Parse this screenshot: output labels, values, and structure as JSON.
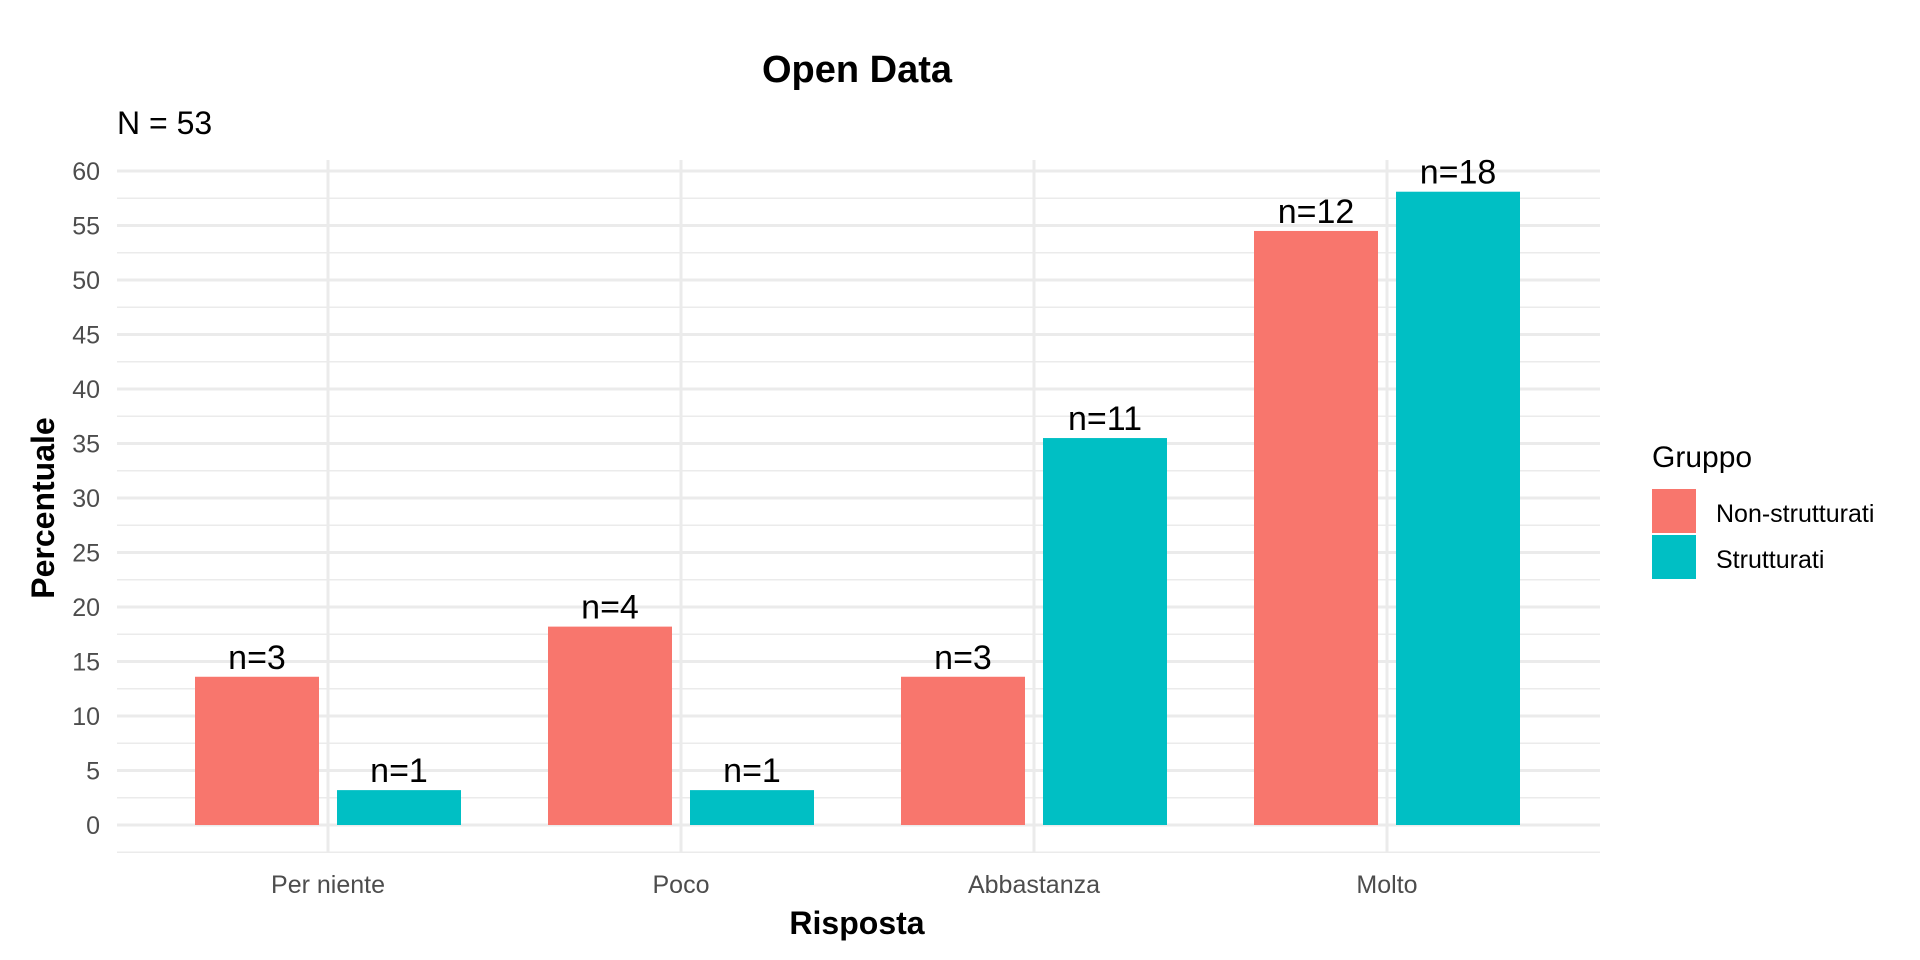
{
  "chart_data": {
    "type": "bar",
    "title": "Open Data",
    "subtitle": "N = 53",
    "xlabel": "Risposta",
    "ylabel": "Percentuale",
    "categories": [
      "Per niente",
      "Poco",
      "Abbastanza",
      "Molto"
    ],
    "series": [
      {
        "name": "Non-strutturati",
        "color": "#F8766D",
        "values": [
          13.6,
          18.2,
          13.6,
          54.5
        ],
        "labels": [
          "n=3",
          "n=4",
          "n=3",
          "n=12"
        ]
      },
      {
        "name": "Strutturati",
        "color": "#00BFC4",
        "values": [
          3.2,
          3.2,
          35.5,
          58.1
        ],
        "labels": [
          "n=1",
          "n=1",
          "n=11",
          "n=18"
        ]
      }
    ],
    "ylim": [
      0,
      60
    ],
    "yticks": [
      0,
      5,
      10,
      15,
      20,
      25,
      30,
      35,
      40,
      45,
      50,
      55,
      60
    ],
    "legend": {
      "title": "Gruppo",
      "position": "right"
    },
    "grid": true
  }
}
